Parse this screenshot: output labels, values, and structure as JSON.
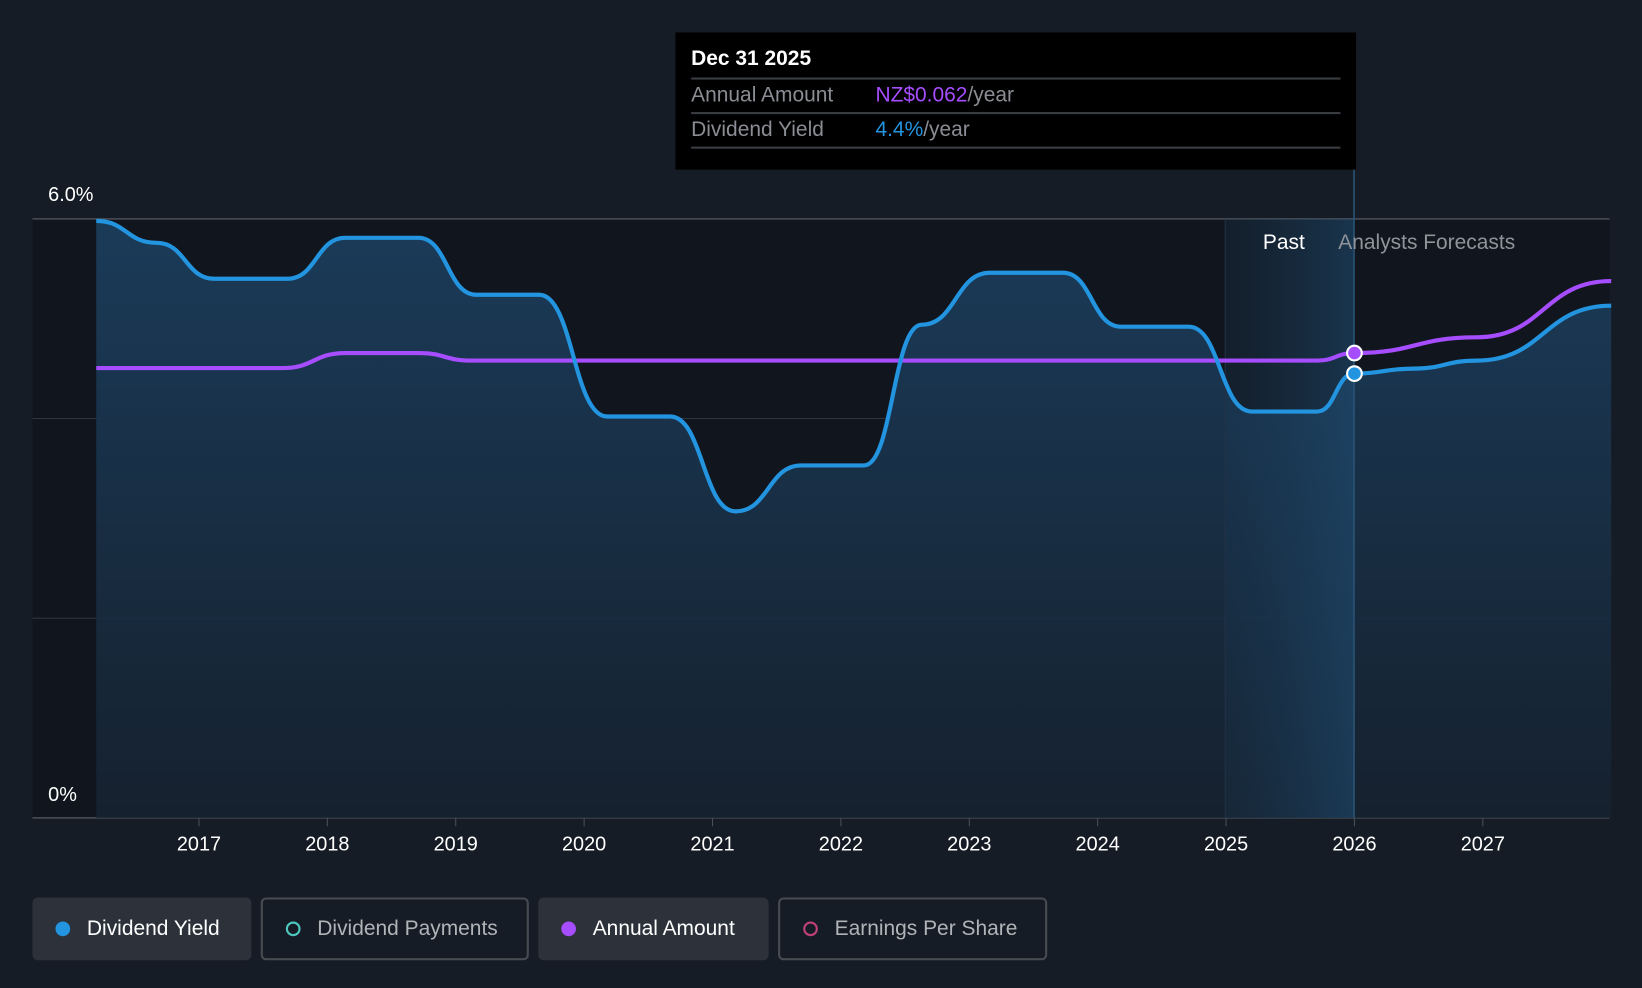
{
  "tooltip": {
    "date": "Dec 31 2025",
    "rows": [
      {
        "label": "Annual Amount",
        "value": "NZ$0.062",
        "unit": "/year",
        "color": "#a64dff"
      },
      {
        "label": "Dividend Yield",
        "value": "4.4%",
        "unit": "/year",
        "color": "#2394df"
      }
    ]
  },
  "regions": {
    "past": "Past",
    "forecast": "Analysts Forecasts"
  },
  "legend": [
    {
      "label": "Dividend Yield",
      "color": "#2394df",
      "active": true
    },
    {
      "label": "Dividend Payments",
      "color": "#4fc9c0",
      "active": false
    },
    {
      "label": "Annual Amount",
      "color": "#a64dff",
      "active": true
    },
    {
      "label": "Earnings Per Share",
      "color": "#c2407a",
      "active": false
    }
  ],
  "chart_data": {
    "type": "line",
    "y_axis": {
      "labels": [
        "6.0%",
        "0%"
      ],
      "range": [
        0,
        6
      ],
      "unit": "%"
    },
    "x_ticks": [
      "2017",
      "2018",
      "2019",
      "2020",
      "2021",
      "2022",
      "2023",
      "2024",
      "2025",
      "2026",
      "2027"
    ],
    "x_range": [
      2016.2,
      2028.0
    ],
    "past_forecast_boundary": 2026.0,
    "series": [
      {
        "name": "Dividend Yield",
        "unit": "%",
        "color": "#2394df",
        "points": [
          [
            2016.2,
            5.98
          ],
          [
            2016.67,
            5.76
          ],
          [
            2017.12,
            5.4
          ],
          [
            2017.69,
            5.4
          ],
          [
            2018.14,
            5.81
          ],
          [
            2018.71,
            5.81
          ],
          [
            2019.16,
            5.24
          ],
          [
            2019.65,
            5.24
          ],
          [
            2020.18,
            4.02
          ],
          [
            2020.67,
            4.02
          ],
          [
            2021.18,
            3.07
          ],
          [
            2021.69,
            3.53
          ],
          [
            2022.18,
            3.53
          ],
          [
            2022.63,
            4.94
          ],
          [
            2023.16,
            5.46
          ],
          [
            2023.73,
            5.46
          ],
          [
            2024.18,
            4.92
          ],
          [
            2024.71,
            4.92
          ],
          [
            2025.2,
            4.07
          ],
          [
            2025.71,
            4.07
          ],
          [
            2026.0,
            4.45
          ],
          [
            2026.46,
            4.5
          ],
          [
            2026.95,
            4.58
          ],
          [
            2028.0,
            5.13
          ]
        ]
      },
      {
        "name": "Annual Amount",
        "unit": "NZ$",
        "color": "#a64dff",
        "range": [
          0,
          0.0799
        ],
        "points": [
          [
            2016.2,
            0.06
          ],
          [
            2017.65,
            0.06
          ],
          [
            2018.14,
            0.062
          ],
          [
            2018.71,
            0.062
          ],
          [
            2019.12,
            0.061
          ],
          [
            2025.71,
            0.061
          ],
          [
            2026.0,
            0.062
          ],
          [
            2026.95,
            0.0641
          ],
          [
            2028.0,
            0.0716
          ]
        ]
      }
    ]
  }
}
